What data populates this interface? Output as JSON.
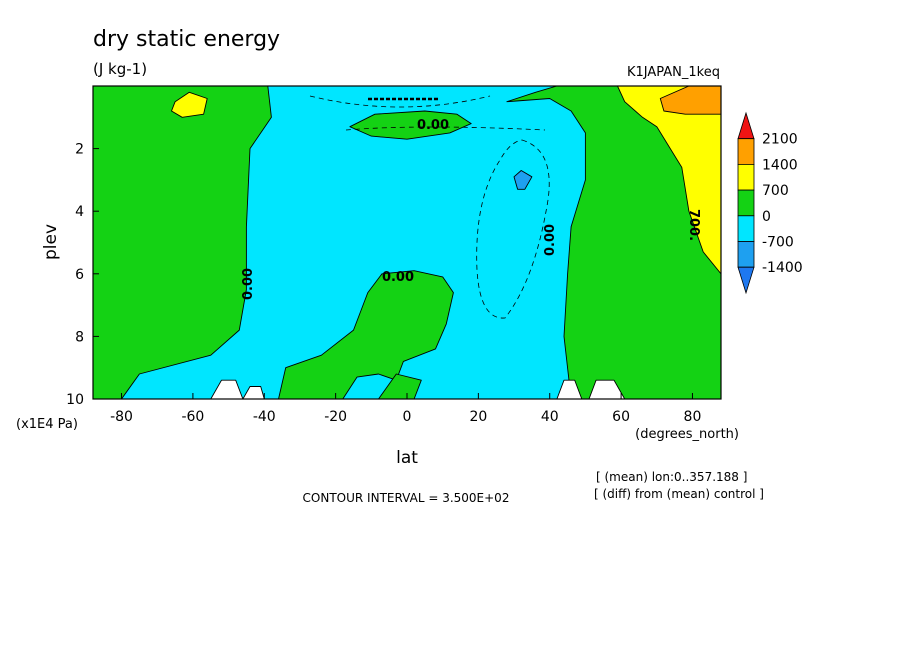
{
  "title": "dry static energy",
  "units": "(J kg-1)",
  "experiment": "K1JAPAN_1keq",
  "contour_interval": "CONTOUR INTERVAL = 3.500E+02",
  "info": {
    "line1": "[ (mean) lon:0..357.188 ]",
    "line2": "[ (diff) from (mean) control ]"
  },
  "colors": {
    "c_below_m1400": "#1e78f0",
    "c_m1400_m700": "#1ea0f0",
    "c_m700_0": "#00e6ff",
    "c_0_700": "#14d214",
    "c_700_1400": "#ffff00",
    "c_1400_2100": "#ffa000",
    "c_above_2100": "#f01414",
    "missing": "#ffffff"
  },
  "chart_data": {
    "type": "heatmap",
    "title": "dry static energy",
    "units": "(J kg-1)",
    "xlabel": "lat",
    "x_unit_label": "(degrees_north)",
    "ylabel": "plev",
    "y_unit_label": "(x1E4 Pa)",
    "xlim": [
      -88,
      88
    ],
    "ylim": [
      0,
      10
    ],
    "y_inverted": true,
    "x_ticks": [
      "-80",
      "-60",
      "-40",
      "-20",
      "0",
      "20",
      "40",
      "60",
      "80"
    ],
    "y_ticks": [
      "2",
      "4",
      "6",
      "8",
      "10"
    ],
    "colorbar": {
      "levels": [
        "2100",
        "1400",
        "700",
        "0",
        "-700",
        "-1400"
      ],
      "bins": [
        "c_above_2100",
        "c_1400_2100",
        "c_700_1400",
        "c_0_700",
        "c_m700_0",
        "c_m1400_m700",
        "c_below_m1400"
      ]
    },
    "contour_labels": [
      "0.00",
      "0.00",
      "0.00",
      "0.00",
      "700."
    ],
    "regions": [
      {
        "name": "southern-positive",
        "bin": "c_0_700",
        "poly": [
          [
            -88,
            0
          ],
          [
            -39,
            0
          ],
          [
            -38,
            1
          ],
          [
            -44,
            2
          ],
          [
            -45,
            4.5
          ],
          [
            -45,
            6.5
          ],
          [
            -47,
            7.8
          ],
          [
            -55,
            8.6
          ],
          [
            -75,
            9.2
          ],
          [
            -80,
            10
          ],
          [
            -88,
            10
          ]
        ]
      },
      {
        "name": "southern-upper-warm",
        "bin": "c_700_1400",
        "poly": [
          [
            -65,
            0.5
          ],
          [
            -61,
            0.2
          ],
          [
            -56,
            0.4
          ],
          [
            -57,
            0.9
          ],
          [
            -63,
            1.0
          ],
          [
            -66,
            0.8
          ]
        ]
      },
      {
        "name": "central-positive",
        "bin": "c_0_700",
        "poly": [
          [
            -36,
            10
          ],
          [
            -34,
            9.0
          ],
          [
            -24,
            8.6
          ],
          [
            -15,
            7.8
          ],
          [
            -11,
            6.6
          ],
          [
            -7,
            6.0
          ],
          [
            2,
            5.9
          ],
          [
            10,
            6.1
          ],
          [
            13,
            6.6
          ],
          [
            11,
            7.6
          ],
          [
            8,
            8.4
          ],
          [
            -1,
            8.8
          ],
          [
            -3,
            9.4
          ],
          [
            -8,
            9.2
          ],
          [
            -14,
            9.3
          ],
          [
            -18,
            10
          ]
        ]
      },
      {
        "name": "lower-left-positive",
        "bin": "c_0_700",
        "poly": [
          [
            -8,
            10
          ],
          [
            -3,
            9.2
          ],
          [
            4,
            9.4
          ],
          [
            2,
            10
          ]
        ]
      },
      {
        "name": "upper-positive-band",
        "bin": "c_0_700",
        "poly": [
          [
            -16,
            1.3
          ],
          [
            -9,
            0.9
          ],
          [
            5,
            0.8
          ],
          [
            14,
            0.9
          ],
          [
            18,
            1.2
          ],
          [
            12,
            1.5
          ],
          [
            0,
            1.7
          ],
          [
            -10,
            1.6
          ]
        ]
      },
      {
        "name": "northern-positive",
        "bin": "c_0_700",
        "poly": [
          [
            28,
            0.5
          ],
          [
            36,
            0.2
          ],
          [
            42,
            0
          ],
          [
            88,
            0
          ],
          [
            88,
            10
          ],
          [
            46,
            10
          ],
          [
            44,
            8.0
          ],
          [
            45,
            6.0
          ],
          [
            46,
            4.5
          ],
          [
            50,
            3.0
          ],
          [
            50,
            1.5
          ],
          [
            46,
            0.8
          ],
          [
            40,
            0.4
          ]
        ]
      },
      {
        "name": "northern-warm",
        "bin": "c_700_1400",
        "poly": [
          [
            59,
            0
          ],
          [
            88,
            0
          ],
          [
            88,
            6.0
          ],
          [
            83,
            5.3
          ],
          [
            79,
            4.0
          ],
          [
            77,
            2.6
          ],
          [
            70,
            1.3
          ],
          [
            66,
            1.0
          ],
          [
            61,
            0.5
          ]
        ]
      },
      {
        "name": "arctic-upper-hot",
        "bin": "c_1400_2100",
        "poly": [
          [
            71,
            0.4
          ],
          [
            79,
            0
          ],
          [
            88,
            0
          ],
          [
            88,
            0.9
          ],
          [
            78,
            0.9
          ],
          [
            72,
            0.8
          ]
        ]
      },
      {
        "name": "midlat-negative-cell",
        "bin": "c_m1400_m700",
        "poly": [
          [
            30,
            2.9
          ],
          [
            32,
            2.7
          ],
          [
            35,
            2.9
          ],
          [
            33,
            3.3
          ],
          [
            31,
            3.3
          ]
        ]
      },
      {
        "name": "missing-left",
        "bin": "missing",
        "poly": [
          [
            -55,
            10
          ],
          [
            -52,
            9.4
          ],
          [
            -48,
            9.4
          ],
          [
            -46,
            10
          ]
        ]
      },
      {
        "name": "missing-left-2",
        "bin": "missing",
        "poly": [
          [
            -46,
            10
          ],
          [
            -44,
            9.6
          ],
          [
            -41,
            9.6
          ],
          [
            -40,
            10
          ]
        ]
      },
      {
        "name": "missing-right",
        "bin": "missing",
        "poly": [
          [
            42,
            10
          ],
          [
            44,
            9.4
          ],
          [
            47,
            9.4
          ],
          [
            49,
            10
          ]
        ]
      },
      {
        "name": "missing-right-2",
        "bin": "missing",
        "poly": [
          [
            51,
            10
          ],
          [
            53,
            9.4
          ],
          [
            58,
            9.4
          ],
          [
            61,
            10
          ]
        ]
      }
    ]
  }
}
